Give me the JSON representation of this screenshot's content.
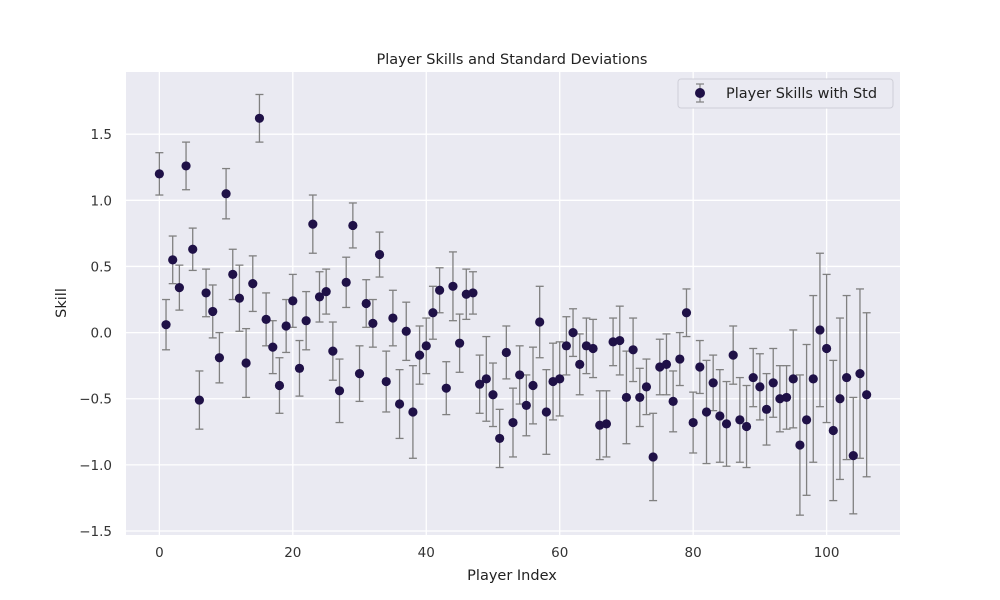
{
  "chart_data": {
    "type": "scatter",
    "title": "Player Skills and Standard Deviations",
    "xlabel": "Player Index",
    "ylabel": "Skill",
    "xlim": [
      -5,
      111
    ],
    "ylim": [
      -1.53,
      1.97
    ],
    "xticks": [
      0,
      20,
      40,
      60,
      80,
      100
    ],
    "yticks": [
      -1.5,
      -1.0,
      -0.5,
      0.0,
      0.5,
      1.0,
      1.5
    ],
    "xtick_labels": [
      "0",
      "20",
      "40",
      "60",
      "80",
      "100"
    ],
    "ytick_labels": [
      "−1.5",
      "−1.0",
      "−0.5",
      "0.0",
      "0.5",
      "1.0",
      "1.5"
    ],
    "grid": true,
    "legend_position": "top-right",
    "colors": {
      "background": "#eaeaf2",
      "grid": "#ffffff",
      "marker": "#1f1147",
      "errorbar": "#808080"
    },
    "series": [
      {
        "name": "Player Skills with Std",
        "x": [
          0,
          1,
          2,
          3,
          4,
          5,
          6,
          7,
          8,
          9,
          10,
          11,
          12,
          13,
          14,
          15,
          16,
          17,
          18,
          19,
          20,
          21,
          22,
          23,
          24,
          25,
          26,
          27,
          28,
          29,
          30,
          31,
          32,
          33,
          34,
          35,
          36,
          37,
          38,
          39,
          40,
          41,
          42,
          43,
          44,
          45,
          46,
          47,
          48,
          49,
          50,
          51,
          52,
          53,
          54,
          55,
          56,
          57,
          58,
          59,
          60,
          61,
          62,
          63,
          64,
          65,
          66,
          67,
          68,
          69,
          70,
          71,
          72,
          73,
          74,
          75,
          76,
          77,
          78,
          79,
          80,
          81,
          82,
          83,
          84,
          85,
          86,
          87,
          88,
          89,
          90,
          91,
          92,
          93,
          94,
          95,
          96,
          97,
          98,
          99,
          100,
          101,
          102,
          103,
          104,
          105,
          106
        ],
        "y": [
          1.2,
          0.06,
          0.55,
          0.34,
          1.26,
          0.63,
          -0.51,
          0.3,
          0.16,
          -0.19,
          1.05,
          0.44,
          0.26,
          -0.23,
          0.37,
          1.62,
          0.1,
          -0.11,
          -0.4,
          0.05,
          0.24,
          -0.27,
          0.09,
          0.82,
          0.27,
          0.31,
          -0.14,
          -0.44,
          0.38,
          0.81,
          -0.31,
          0.22,
          0.07,
          0.59,
          -0.37,
          0.11,
          -0.54,
          0.01,
          -0.6,
          -0.17,
          -0.1,
          0.15,
          0.32,
          -0.42,
          0.35,
          -0.08,
          0.29,
          0.3,
          -0.39,
          -0.35,
          -0.47,
          -0.8,
          -0.15,
          -0.68,
          -0.32,
          -0.55,
          -0.4,
          0.08,
          -0.6,
          -0.37,
          -0.35,
          -0.1,
          0.0,
          -0.24,
          -0.1,
          -0.12,
          -0.7,
          -0.69,
          -0.07,
          -0.06,
          -0.49,
          -0.13,
          -0.49,
          -0.41,
          -0.94,
          -0.26,
          -0.24,
          -0.52,
          -0.2,
          0.15,
          -0.68,
          -0.26,
          -0.6,
          -0.38,
          -0.63,
          -0.69,
          -0.17,
          -0.66,
          -0.71,
          -0.34,
          -0.41,
          -0.58,
          -0.38,
          -0.5,
          -0.49,
          -0.35,
          -0.85,
          -0.66,
          -0.35,
          0.02,
          -0.12,
          -0.74,
          -0.5,
          -0.34,
          -0.93,
          -0.31,
          -0.47
        ],
        "yerr": [
          0.16,
          0.19,
          0.18,
          0.17,
          0.18,
          0.16,
          0.22,
          0.18,
          0.2,
          0.19,
          0.19,
          0.19,
          0.25,
          0.26,
          0.21,
          0.18,
          0.2,
          0.2,
          0.21,
          0.2,
          0.2,
          0.21,
          0.22,
          0.22,
          0.19,
          0.17,
          0.22,
          0.24,
          0.19,
          0.17,
          0.21,
          0.18,
          0.18,
          0.17,
          0.23,
          0.21,
          0.26,
          0.22,
          0.35,
          0.22,
          0.21,
          0.2,
          0.17,
          0.2,
          0.26,
          0.22,
          0.19,
          0.16,
          0.22,
          0.32,
          0.24,
          0.22,
          0.2,
          0.26,
          0.22,
          0.23,
          0.29,
          0.27,
          0.32,
          0.29,
          0.28,
          0.22,
          0.18,
          0.23,
          0.21,
          0.22,
          0.26,
          0.25,
          0.18,
          0.26,
          0.35,
          0.24,
          0.22,
          0.21,
          0.33,
          0.21,
          0.23,
          0.23,
          0.2,
          0.18,
          0.23,
          0.2,
          0.39,
          0.21,
          0.35,
          0.32,
          0.22,
          0.32,
          0.31,
          0.22,
          0.25,
          0.27,
          0.26,
          0.25,
          0.24,
          0.37,
          0.53,
          0.57,
          0.63,
          0.58,
          0.56,
          0.53,
          0.61,
          0.62,
          0.44,
          0.64,
          0.62
        ]
      }
    ]
  }
}
